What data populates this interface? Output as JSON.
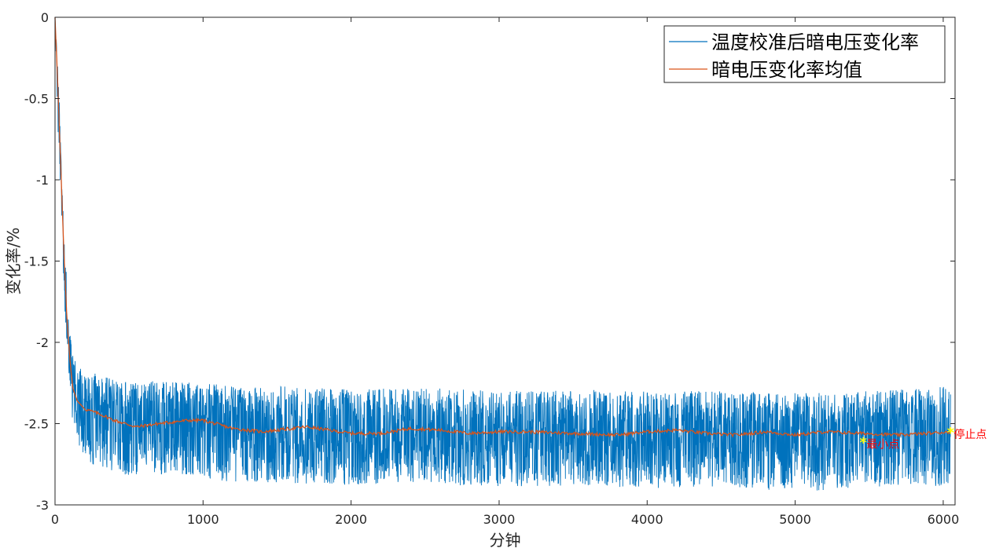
{
  "chart_data": {
    "type": "line",
    "xlabel": "分钟",
    "ylabel": "变化率/%",
    "xlim": [
      0,
      6080
    ],
    "ylim": [
      -3,
      0
    ],
    "xticks": [
      0,
      1000,
      2000,
      3000,
      4000,
      5000,
      6000
    ],
    "yticks": [
      0,
      -0.5,
      -1,
      -1.5,
      -2,
      -2.5,
      -3
    ],
    "xtick_labels": [
      "0",
      "1000",
      "2000",
      "3000",
      "4000",
      "5000",
      "6000"
    ],
    "ytick_labels": [
      "0",
      "-0.5",
      "-1",
      "-1.5",
      "-2",
      "-2.5",
      "-3"
    ],
    "legend_position": "top-right",
    "series": [
      {
        "name": "温度校准后暗电压变化率",
        "color": "#0072BD",
        "style": "noisy band",
        "x": [
          0,
          20,
          40,
          60,
          80,
          100,
          120,
          150,
          200,
          300,
          500,
          800,
          1200,
          1600,
          2000,
          2500,
          3000,
          3500,
          4000,
          4500,
          5000,
          5500,
          6050
        ],
        "mean": [
          0,
          -0.5,
          -1.0,
          -1.5,
          -1.85,
          -2.05,
          -2.25,
          -2.35,
          -2.42,
          -2.46,
          -2.52,
          -2.5,
          -2.53,
          -2.55,
          -2.57,
          -2.56,
          -2.58,
          -2.57,
          -2.58,
          -2.57,
          -2.59,
          -2.58,
          -2.55
        ],
        "upper": [
          0,
          -0.3,
          -0.8,
          -1.3,
          -1.65,
          -1.9,
          -2.05,
          -2.15,
          -2.17,
          -2.2,
          -2.24,
          -2.23,
          -2.27,
          -2.27,
          -2.29,
          -2.28,
          -2.3,
          -2.29,
          -2.3,
          -2.3,
          -2.31,
          -2.3,
          -2.27
        ],
        "lower": [
          0,
          -0.7,
          -1.2,
          -1.7,
          -2.05,
          -2.3,
          -2.5,
          -2.62,
          -2.72,
          -2.78,
          -2.82,
          -2.81,
          -2.86,
          -2.87,
          -2.88,
          -2.87,
          -2.89,
          -2.88,
          -2.9,
          -2.89,
          -2.92,
          -2.9,
          -2.88
        ]
      },
      {
        "name": "暗电压变化率均值",
        "color": "#D95319",
        "x": [
          0,
          20,
          40,
          60,
          80,
          100,
          120,
          150,
          200,
          300,
          400,
          550,
          700,
          900,
          1000,
          1200,
          1400,
          1700,
          2000,
          2200,
          2400,
          2600,
          2800,
          3000,
          3200,
          3500,
          3800,
          4000,
          4200,
          4400,
          4600,
          4800,
          5000,
          5200,
          5450,
          5700,
          5900,
          6050
        ],
        "y": [
          0,
          -0.45,
          -0.95,
          -1.45,
          -1.85,
          -2.1,
          -2.28,
          -2.36,
          -2.41,
          -2.44,
          -2.48,
          -2.52,
          -2.5,
          -2.48,
          -2.48,
          -2.53,
          -2.55,
          -2.52,
          -2.56,
          -2.56,
          -2.53,
          -2.54,
          -2.56,
          -2.55,
          -2.55,
          -2.56,
          -2.57,
          -2.55,
          -2.54,
          -2.56,
          -2.57,
          -2.55,
          -2.57,
          -2.55,
          -2.56,
          -2.57,
          -2.56,
          -2.55
        ]
      }
    ],
    "annotations": [
      {
        "label": "最小点",
        "x": 5460,
        "y": -2.61,
        "marker": "*",
        "marker_color": "#FFFF00",
        "text_color": "#FF0000"
      },
      {
        "label": "停止点",
        "x": 6050,
        "y": -2.55,
        "marker": "*",
        "marker_color": "#FFFF00",
        "text_color": "#FF0000"
      }
    ]
  }
}
